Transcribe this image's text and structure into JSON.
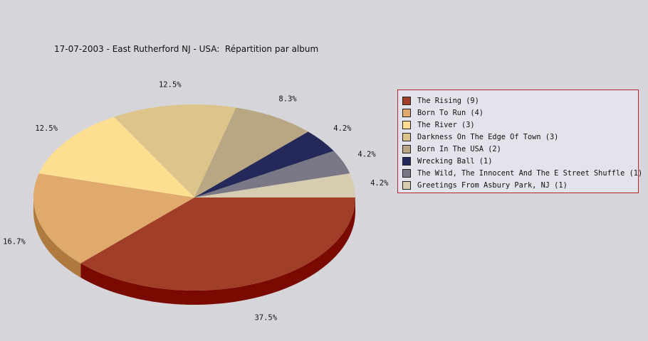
{
  "chart_data": {
    "type": "pie",
    "title": "17-07-2003 - East Rutherford NJ - USA:  Répartition par album",
    "legend_position": "right",
    "slices": [
      {
        "label": "The Rising (9)",
        "value": 9,
        "percent_label": "37.5%",
        "color": "#a03e28",
        "side_color": "#7a0a00"
      },
      {
        "label": "Born To Run (4)",
        "value": 4,
        "percent_label": "16.7%",
        "color": "#e0aa6c",
        "side_color": "#b07a3e"
      },
      {
        "label": "The River (3)",
        "value": 3,
        "percent_label": "12.5%",
        "color": "#fede90",
        "side_color": "#c8a860"
      },
      {
        "label": "Darkness On The Edge Of Town (3)",
        "value": 3,
        "percent_label": "12.5%",
        "color": "#ddc48a",
        "side_color": "#a89058"
      },
      {
        "label": "Born In The USA (2)",
        "value": 2,
        "percent_label": "8.3%",
        "color": "#b8a782",
        "side_color": "#887650"
      },
      {
        "label": "Wrecking Ball (1)",
        "value": 1,
        "percent_label": "4.2%",
        "color": "#25295a",
        "side_color": "#101430"
      },
      {
        "label": "The Wild, The Innocent And The E Street Shuffle (1)",
        "value": 1,
        "percent_label": "4.2%",
        "color": "#7a7886",
        "side_color": "#4a4856"
      },
      {
        "label": "Greetings From Asbury Park, NJ (1)",
        "value": 1,
        "percent_label": "4.2%",
        "color": "#d8ccb0",
        "side_color": "#a89c80"
      }
    ]
  }
}
